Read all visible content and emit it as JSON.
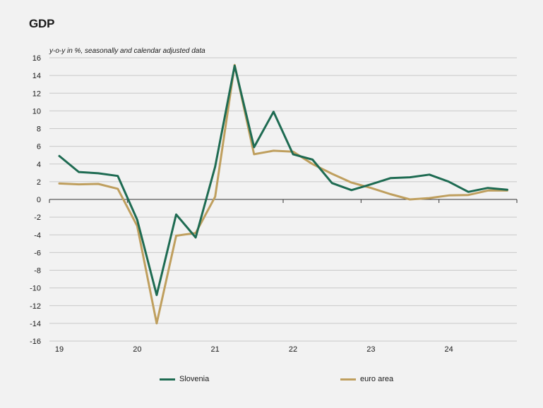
{
  "title": "GDP",
  "subtitle": "y-o-y in %, seasonally and calendar adjusted data",
  "colors": {
    "slovenia": "#1e6b52",
    "euro_area": "#bf9f5e",
    "grid": "#c8c8c8",
    "axis": "#333333"
  },
  "chart_data": {
    "type": "line",
    "title": "GDP",
    "subtitle": "y-o-y in %, seasonally and calendar adjusted data",
    "xlabel": "",
    "ylabel": "",
    "x_tick_labels": [
      "19",
      "20",
      "21",
      "22",
      "23",
      "24"
    ],
    "x": [
      "2019Q1",
      "2019Q2",
      "2019Q3",
      "2019Q4",
      "2020Q1",
      "2020Q2",
      "2020Q3",
      "2020Q4",
      "2021Q1",
      "2021Q2",
      "2021Q3",
      "2021Q4",
      "2022Q1",
      "2022Q2",
      "2022Q3",
      "2022Q4",
      "2023Q1",
      "2023Q2",
      "2023Q3",
      "2023Q4",
      "2024Q1",
      "2024Q2",
      "2024Q3",
      "2024Q4"
    ],
    "ylim": [
      -16,
      16
    ],
    "yticks": [
      16,
      14,
      12,
      10,
      8,
      6,
      4,
      2,
      0,
      -2,
      -4,
      -6,
      -8,
      -10,
      -12,
      -14,
      -16
    ],
    "grid": true,
    "legend_position": "bottom",
    "series": [
      {
        "name": "Slovenia",
        "color": "#1e6b52",
        "values": [
          4.9,
          3.1,
          2.95,
          2.65,
          -2.3,
          -10.8,
          -1.7,
          -4.3,
          3.7,
          15.1,
          5.9,
          9.9,
          5.1,
          4.5,
          1.85,
          1.05,
          1.7,
          2.4,
          2.5,
          2.8,
          2.0,
          0.85,
          1.3,
          1.1
        ]
      },
      {
        "name": "euro area",
        "color": "#bf9f5e",
        "values": [
          1.8,
          1.7,
          1.75,
          1.2,
          -3.0,
          -14.0,
          -4.1,
          -3.8,
          0.3,
          15.2,
          5.1,
          5.5,
          5.4,
          4.0,
          2.9,
          1.9,
          1.3,
          0.6,
          0.0,
          0.15,
          0.45,
          0.5,
          1.0,
          1.0
        ]
      }
    ]
  },
  "legend": [
    {
      "label": "Slovenia",
      "color": "#1e6b52"
    },
    {
      "label": "euro area",
      "color": "#bf9f5e"
    }
  ]
}
